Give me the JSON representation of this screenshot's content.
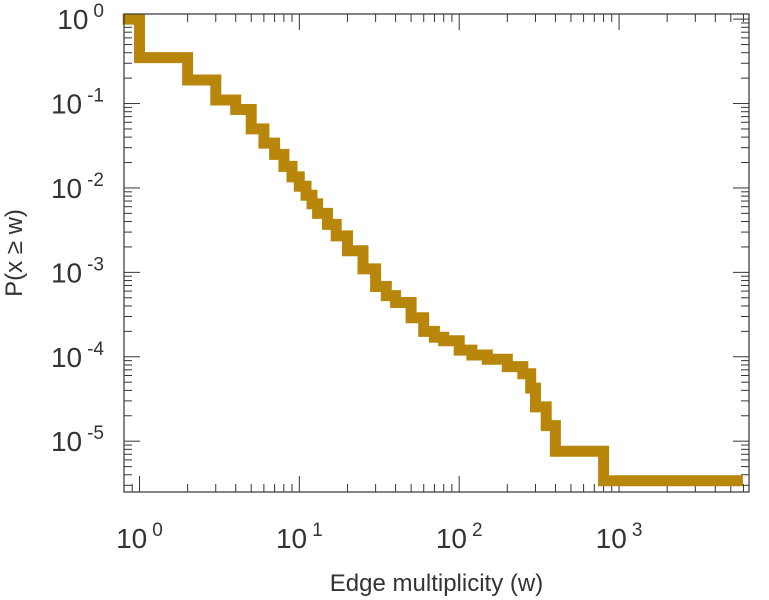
{
  "chart_data": {
    "type": "line",
    "xlabel": "Edge multiplicity (w)",
    "ylabel": "P(x ≥ w)",
    "xscale": "log",
    "yscale": "log",
    "xlim": [
      0.8,
      6500
    ],
    "ylim": [
      2.5e-06,
      1.15
    ],
    "grid": false,
    "line_style": "step",
    "series": [
      {
        "color": "#b8860b",
        "x": [
          0.85,
          1,
          2,
          3,
          4,
          5,
          6,
          7,
          8,
          9,
          10,
          11,
          12,
          13,
          15,
          17,
          20,
          25,
          30,
          35,
          40,
          50,
          60,
          70,
          80,
          100,
          120,
          150,
          200,
          250,
          280,
          300,
          350,
          400,
          800,
          5500
        ],
        "y": [
          1.0,
          0.35,
          0.19,
          0.11,
          0.085,
          0.05,
          0.034,
          0.025,
          0.018,
          0.0135,
          0.0105,
          0.0082,
          0.0065,
          0.005,
          0.0037,
          0.0027,
          0.0018,
          0.0011,
          0.00068,
          0.00053,
          0.00044,
          0.00029,
          0.0002,
          0.00017,
          0.000155,
          0.00012,
          0.000105,
          9.35e-05,
          7.65e-05,
          6.3e-05,
          4.25e-05,
          2.55e-05,
          1.53e-05,
          7.6e-06,
          3.4e-06,
          3.4e-06
        ]
      }
    ],
    "x_ticks": [
      {
        "value": 1,
        "base": "10",
        "exp": "0"
      },
      {
        "value": 10,
        "base": "10",
        "exp": "1"
      },
      {
        "value": 100,
        "base": "10",
        "exp": "2"
      },
      {
        "value": 1000,
        "base": "10",
        "exp": "3"
      }
    ],
    "y_ticks": [
      {
        "value": 1,
        "base": "10",
        "exp": "0"
      },
      {
        "value": 0.1,
        "base": "10",
        "exp": "-1"
      },
      {
        "value": 0.01,
        "base": "10",
        "exp": "-2"
      },
      {
        "value": 0.001,
        "base": "10",
        "exp": "-3"
      },
      {
        "value": 0.0001,
        "base": "10",
        "exp": "-4"
      },
      {
        "value": 1e-05,
        "base": "10",
        "exp": "-5"
      }
    ]
  }
}
